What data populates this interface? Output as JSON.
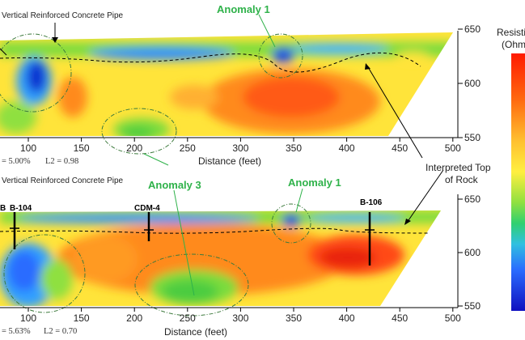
{
  "top_panel": {
    "pipe_label": "Vertical Reinforced Concrete Pipe",
    "stats": {
      "rms": "= 5.00%",
      "l2": "L2 = 0.98"
    },
    "x_ticks": [
      "100",
      "150",
      "200",
      "250",
      "300",
      "350",
      "400",
      "450",
      "500"
    ],
    "y_ticks": [
      "650",
      "600",
      "550"
    ],
    "xlabel": "Distance (feet)"
  },
  "bottom_panel": {
    "pipe_label": "Vertical Reinforced Concrete Pipe",
    "stats": {
      "rms": "= 5.63%",
      "l2": "L2 = 0.70"
    },
    "x_ticks": [
      "100",
      "150",
      "200",
      "250",
      "300",
      "350",
      "400",
      "450",
      "500"
    ],
    "y_ticks": [
      "650",
      "600",
      "550"
    ],
    "xlabel": "Distance (feet)",
    "borings": [
      "B",
      "B-104",
      "CDM-4",
      "B-106"
    ]
  },
  "annotations": {
    "anomaly1_top": "Anomaly 1",
    "anomaly1_bottom": "Anomaly 1",
    "anomaly3": "Anomaly 3",
    "top_of_rock_line1": "Interpreted Top",
    "top_of_rock_line2": "of Rock"
  },
  "colorbar": {
    "title_line1": "Resisti",
    "title_line2": "(Ohm-"
  },
  "colors": {
    "annotation_green": "#2fb24a",
    "yellow": "#ffe43a",
    "orange": "#ff8a1c",
    "red": "#ff3b12",
    "green": "#7cdc3c",
    "blue": "#2a6cff",
    "deep_blue": "#1030d0"
  }
}
